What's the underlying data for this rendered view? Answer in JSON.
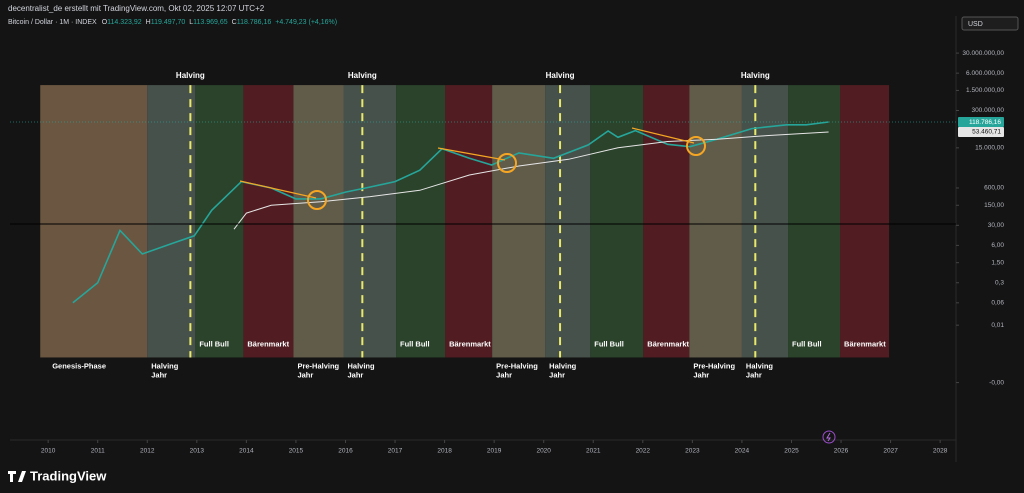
{
  "header": {
    "title": "decentralist_de erstellt mit TradingView.com, Okt 02, 2025 12:07 UTC+2",
    "symbol": "Bitcoin / Dollar · 1M · INDEX",
    "ohlc": [
      {
        "key": "O",
        "value": "114.323,92"
      },
      {
        "key": "H",
        "value": "119.497,70"
      },
      {
        "key": "L",
        "value": "113.969,65"
      },
      {
        "key": "C",
        "value": "118.786,16"
      }
    ],
    "change": "+4.749,23 (+4,16%)",
    "currency": "USD"
  },
  "footer": {
    "brand": "TradingView"
  },
  "chart_data": {
    "type": "line",
    "log_scale": true,
    "xlim": [
      2009.23,
      2028.3
    ],
    "xticks": [
      2010,
      2011,
      2012,
      2013,
      2014,
      2015,
      2016,
      2017,
      2018,
      2019,
      2020,
      2021,
      2022,
      2023,
      2024,
      2025,
      2026,
      2027,
      2028
    ],
    "ylim": [
      1e-06,
      500000000
    ],
    "yticks": [
      {
        "value": 30000000,
        "label": "30.000.000,00"
      },
      {
        "value": 6000000,
        "label": "6.000.000,00"
      },
      {
        "value": 1500000,
        "label": "1.500.000,00"
      },
      {
        "value": 300000,
        "label": "300.000,00"
      },
      {
        "value": 15000,
        "label": "15.000,00"
      },
      {
        "value": 600,
        "label": "600,00"
      },
      {
        "value": 150,
        "label": "150,00"
      },
      {
        "value": 30,
        "label": "30,00"
      },
      {
        "value": 6,
        "label": "6,00"
      },
      {
        "value": 1.5,
        "label": "1,50"
      },
      {
        "value": 0.3,
        "label": "0,3"
      },
      {
        "value": 0.06,
        "label": "0,06"
      },
      {
        "value": 0.01,
        "label": "0,01"
      },
      {
        "value": 0.0001,
        "label": "-0,00"
      }
    ],
    "series": [
      {
        "color": "#26a69a",
        "x": [
          2010.5,
          2011.0,
          2011.45,
          2011.9,
          2012.5,
          2012.95,
          2013.3,
          2013.9,
          2014.5,
          2015.0,
          2015.5,
          2016.0,
          2016.5,
          2017.0,
          2017.5,
          2017.95,
          2018.5,
          2018.95,
          2019.5,
          2020.2,
          2020.9,
          2021.3,
          2021.5,
          2021.85,
          2022.5,
          2022.95,
          2023.5,
          2024.2,
          2024.9,
          2025.3,
          2025.75
        ],
        "values": [
          0.06,
          0.3,
          20,
          3,
          7,
          13,
          100,
          1000,
          600,
          250,
          250,
          430,
          650,
          1000,
          2500,
          14000,
          6500,
          3800,
          10000,
          6500,
          19000,
          58000,
          35000,
          60000,
          20000,
          16500,
          30000,
          70000,
          95000,
          95000,
          118786.16
        ],
        "value_labels": [
          null,
          null,
          null,
          null,
          null,
          null,
          null,
          null,
          null,
          null,
          null,
          null,
          null,
          null,
          null,
          null,
          null,
          null,
          null,
          null,
          null,
          null,
          null,
          null,
          null,
          null,
          null,
          null,
          null,
          null,
          "118.786,16"
        ]
      },
      {
        "color": "#e6e6e6",
        "x": [
          2013.75,
          2014.0,
          2014.5,
          2015.5,
          2016.5,
          2017.5,
          2018.5,
          2019.5,
          2020.5,
          2021.5,
          2022.5,
          2023.5,
          2024.5,
          2025.75
        ],
        "values": [
          22,
          80,
          150,
          200,
          300,
          500,
          1700,
          3500,
          6000,
          15000,
          25000,
          30000,
          40000,
          53460.71
        ],
        "value_labels": [
          null,
          null,
          null,
          null,
          null,
          null,
          null,
          null,
          null,
          null,
          null,
          null,
          null,
          "53.460,71"
        ]
      }
    ],
    "band_range": [
      0.00075,
      2300000
    ],
    "phases": [
      {
        "from": 2009.84,
        "to": 2012.0,
        "color": "#7a6149",
        "label": [
          "Genesis-Phase"
        ],
        "placement": "below"
      },
      {
        "from": 2012.0,
        "to": 2012.97,
        "color": "#505c55",
        "label": [
          "Halving",
          "Jahr"
        ],
        "placement": "below"
      },
      {
        "from": 2012.97,
        "to": 2013.94,
        "color": "#2f4a2f",
        "label": [
          "Full Bull"
        ],
        "placement": "inside"
      },
      {
        "from": 2013.94,
        "to": 2014.95,
        "color": "#5c1e24",
        "label": [
          "Bärenmarkt"
        ],
        "placement": "inside"
      },
      {
        "from": 2014.95,
        "to": 2015.96,
        "color": "#6e6753",
        "label": [
          "Pre-Halving",
          "Jahr"
        ],
        "placement": "below"
      },
      {
        "from": 2015.96,
        "to": 2017.02,
        "color": "#505c55",
        "label": [
          "Halving",
          "Jahr"
        ],
        "placement": "below"
      },
      {
        "from": 2017.02,
        "to": 2018.01,
        "color": "#2f4a2f",
        "label": [
          "Full Bull"
        ],
        "placement": "inside"
      },
      {
        "from": 2018.01,
        "to": 2018.96,
        "color": "#5c1e24",
        "label": [
          "Bärenmarkt"
        ],
        "placement": "inside"
      },
      {
        "from": 2018.96,
        "to": 2020.03,
        "color": "#6e6753",
        "label": [
          "Pre-Halving",
          "Jahr"
        ],
        "placement": "below"
      },
      {
        "from": 2020.03,
        "to": 2020.94,
        "color": "#505c55",
        "label": [
          "Halving",
          "Jahr"
        ],
        "placement": "below"
      },
      {
        "from": 2020.94,
        "to": 2022.01,
        "color": "#2f4a2f",
        "label": [
          "Full Bull"
        ],
        "placement": "inside"
      },
      {
        "from": 2022.01,
        "to": 2022.94,
        "color": "#5c1e24",
        "label": [
          "Bärenmarkt"
        ],
        "placement": "inside"
      },
      {
        "from": 2022.94,
        "to": 2024.0,
        "color": "#6e6753",
        "label": [
          "Pre-Halving",
          "Jahr"
        ],
        "placement": "below"
      },
      {
        "from": 2024.0,
        "to": 2024.93,
        "color": "#505c55",
        "label": [
          "Halving",
          "Jahr"
        ],
        "placement": "below"
      },
      {
        "from": 2024.93,
        "to": 2025.98,
        "color": "#2f4a2f",
        "label": [
          "Full Bull"
        ],
        "placement": "inside"
      },
      {
        "from": 2025.98,
        "to": 2026.97,
        "color": "#5c1e24",
        "label": [
          "Bärenmarkt"
        ],
        "placement": "inside"
      }
    ],
    "halvings": [
      {
        "x": 2012.87,
        "label": "Halving"
      },
      {
        "x": 2016.34,
        "label": "Halving"
      },
      {
        "x": 2020.33,
        "label": "Halving"
      },
      {
        "x": 2024.27,
        "label": "Halving"
      }
    ]
  }
}
